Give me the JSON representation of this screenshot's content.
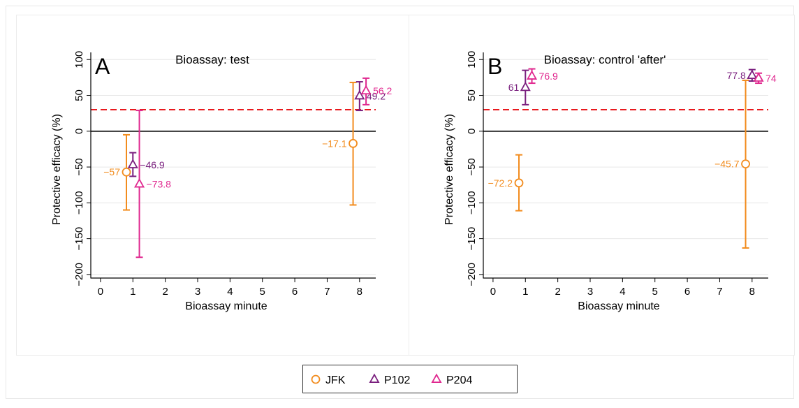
{
  "colors": {
    "JFK": "#f28c1e",
    "P102": "#7a1f7e",
    "P204": "#e0288f",
    "threshold": "#e8191d",
    "zero": "#000000",
    "grid": "#e6e6e6"
  },
  "legend": {
    "placement": "bottom",
    "items": [
      {
        "label": "JFK",
        "series": "JFK",
        "marker": "circle"
      },
      {
        "label": "P102",
        "series": "P102",
        "marker": "triangle"
      },
      {
        "label": "P204",
        "series": "P204",
        "marker": "triangle"
      }
    ]
  },
  "chart_data": [
    {
      "type": "scatter",
      "panel_letter": "A",
      "title": "Bioassay: test",
      "xlabel": "Bioassay minute",
      "ylabel": "Protective efficacy (%)",
      "xlim": [
        -0.3,
        8.5
      ],
      "ylim": [
        -205,
        110
      ],
      "xticks": [
        0,
        1,
        2,
        3,
        4,
        5,
        6,
        7,
        8
      ],
      "yticks": [
        100,
        50,
        0,
        -50,
        -100,
        -150,
        -200
      ],
      "ytick_labels": [
        "100",
        "50",
        "0",
        "−50",
        "−100",
        "−150",
        "−200"
      ],
      "reference_lines": [
        {
          "y": 30,
          "style": "dashed",
          "color": "threshold"
        },
        {
          "y": 0,
          "style": "solid",
          "color": "zero"
        }
      ],
      "grid": true,
      "series": [
        {
          "name": "JFK",
          "marker": "circle",
          "points": [
            {
              "x": 0.8,
              "y": -57,
              "low": -110,
              "high": -5,
              "label": "−57",
              "label_side": "left"
            },
            {
              "x": 7.8,
              "y": -17.1,
              "low": -103,
              "high": 68,
              "label": "−17.1",
              "label_side": "left"
            }
          ]
        },
        {
          "name": "P102",
          "marker": "triangle",
          "points": [
            {
              "x": 1.0,
              "y": -46.9,
              "low": -63,
              "high": -30,
              "label": "−46.9",
              "label_side": "right"
            },
            {
              "x": 8.0,
              "y": 49.2,
              "low": 29,
              "high": 69,
              "label": "49.2",
              "label_side": "right"
            }
          ]
        },
        {
          "name": "P204",
          "marker": "triangle",
          "points": [
            {
              "x": 1.2,
              "y": -73.8,
              "low": -176,
              "high": 29,
              "label": "−73.8",
              "label_side": "right"
            },
            {
              "x": 8.2,
              "y": 56.2,
              "low": 37,
              "high": 74,
              "label": "56.2",
              "label_side": "right"
            }
          ]
        }
      ]
    },
    {
      "type": "scatter",
      "panel_letter": "B",
      "title": "Bioassay: control 'after'",
      "xlabel": "Bioassay minute",
      "ylabel": "Protective efficacy (%)",
      "xlim": [
        -0.3,
        8.5
      ],
      "ylim": [
        -205,
        110
      ],
      "xticks": [
        0,
        1,
        2,
        3,
        4,
        5,
        6,
        7,
        8
      ],
      "yticks": [
        100,
        50,
        0,
        -50,
        -100,
        -150,
        -200
      ],
      "ytick_labels": [
        "100",
        "50",
        "0",
        "−50",
        "−100",
        "−150",
        "−200"
      ],
      "reference_lines": [
        {
          "y": 30,
          "style": "dashed",
          "color": "threshold"
        },
        {
          "y": 0,
          "style": "solid",
          "color": "zero"
        }
      ],
      "grid": true,
      "series": [
        {
          "name": "JFK",
          "marker": "circle",
          "points": [
            {
              "x": 0.8,
              "y": -72.2,
              "low": -111,
              "high": -33,
              "label": "−72.2",
              "label_side": "left"
            },
            {
              "x": 7.8,
              "y": -45.7,
              "low": -163,
              "high": 71,
              "label": "−45.7",
              "label_side": "left"
            }
          ]
        },
        {
          "name": "P102",
          "marker": "triangle",
          "points": [
            {
              "x": 1.0,
              "y": 61,
              "low": 37,
              "high": 85,
              "label": "61",
              "label_side": "left"
            },
            {
              "x": 8.0,
              "y": 77.8,
              "low": 70,
              "high": 86,
              "label": "77.8",
              "label_side": "left"
            }
          ]
        },
        {
          "name": "P204",
          "marker": "triangle",
          "points": [
            {
              "x": 1.2,
              "y": 76.9,
              "low": 67,
              "high": 87,
              "label": "76.9",
              "label_side": "right"
            },
            {
              "x": 8.2,
              "y": 74,
              "low": 67,
              "high": 81,
              "label": "74",
              "label_side": "right"
            }
          ]
        }
      ]
    }
  ]
}
